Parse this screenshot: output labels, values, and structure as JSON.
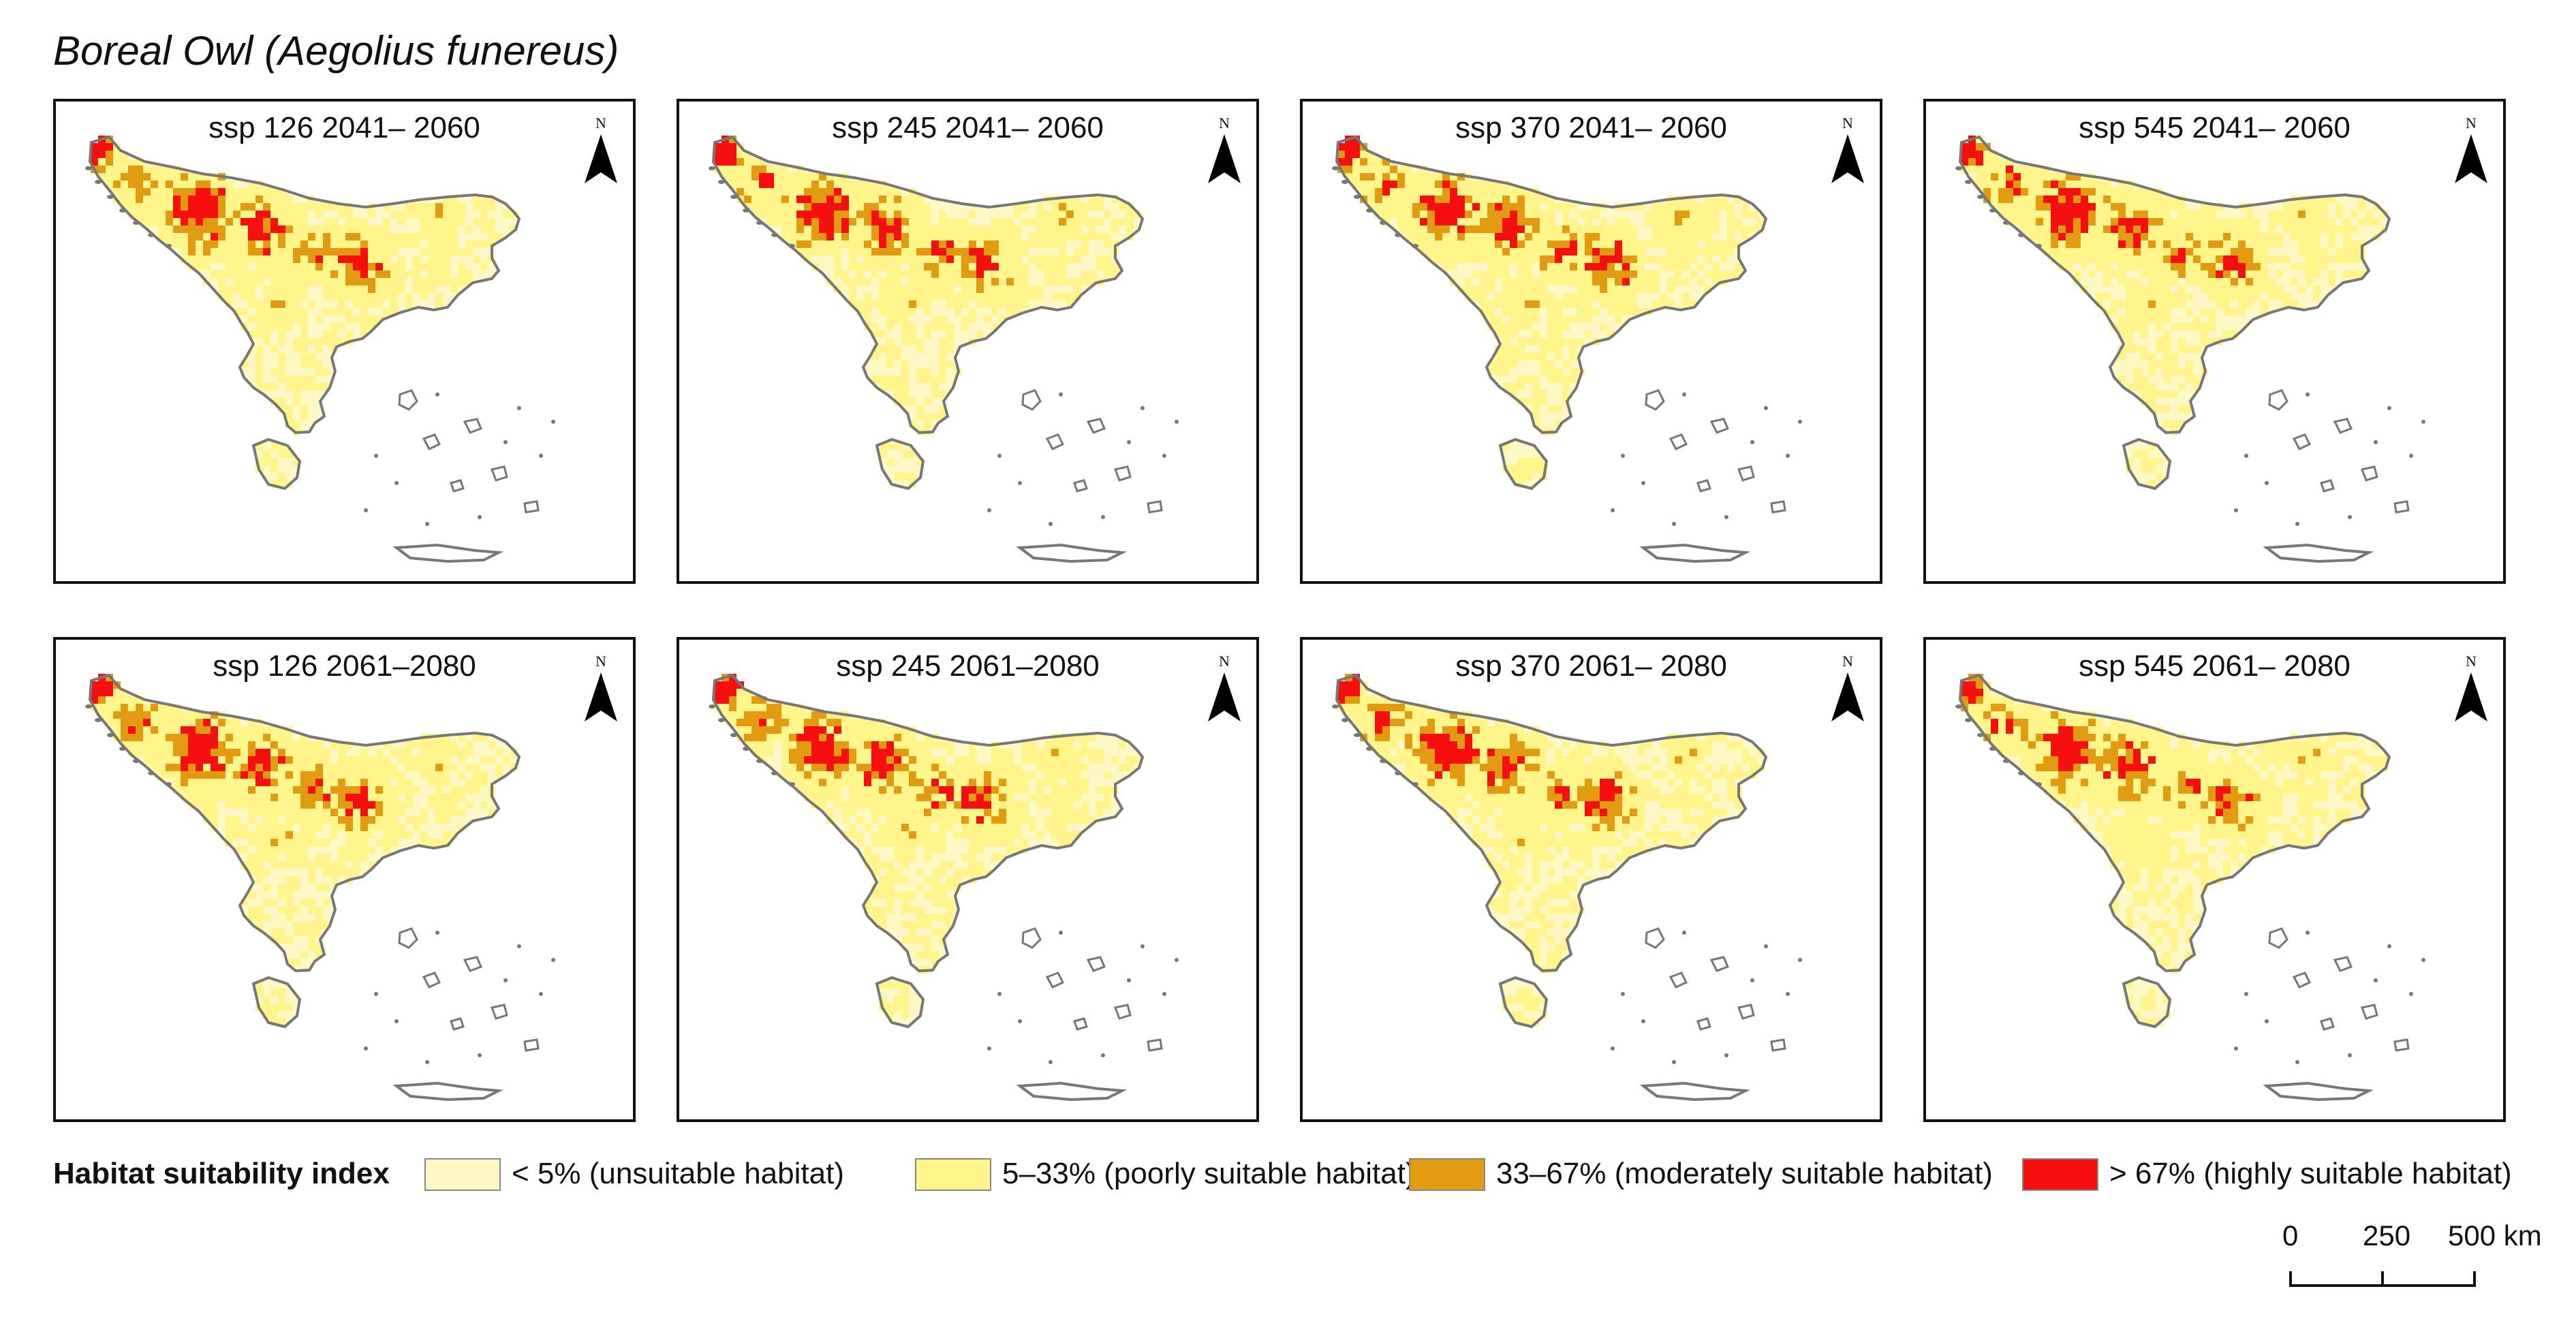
{
  "figure": {
    "title": "Boreal Owl (Aegolius funereus)"
  },
  "panels": [
    {
      "label": "ssp 126 2041– 2060",
      "scenario": "ssp 126",
      "period": "2041–2060"
    },
    {
      "label": "ssp 245 2041– 2060",
      "scenario": "ssp 245",
      "period": "2041–2060"
    },
    {
      "label": "ssp 370 2041– 2060",
      "scenario": "ssp 370",
      "period": "2041–2060"
    },
    {
      "label": "ssp 545 2041– 2060",
      "scenario": "ssp 545",
      "period": "2041–2060"
    },
    {
      "label": "ssp 126 2061–2080",
      "scenario": "ssp 126",
      "period": "2061–2080"
    },
    {
      "label": "ssp 245 2061–2080",
      "scenario": "ssp 245",
      "period": "2061–2080"
    },
    {
      "label": "ssp 370 2061– 2080",
      "scenario": "ssp 370",
      "period": "2061–2080"
    },
    {
      "label": "ssp 545 2061– 2080",
      "scenario": "ssp 545",
      "period": "2061–2080"
    }
  ],
  "north_arrow": {
    "letter": "N"
  },
  "legend": {
    "title": "Habitat suitability index",
    "classes": [
      {
        "label": "< 5% (unsuitable habitat)",
        "color": "#FEF8C6"
      },
      {
        "label": "5–33% (poorly suitable habitat)",
        "color": "#FFF58A"
      },
      {
        "label": "33–67% (moderately suitable habitat)",
        "color": "#E29A10"
      },
      {
        "label": "> 67% (highly suitable habitat)",
        "color": "#F50F0F"
      }
    ]
  },
  "scale_bar": {
    "ticks": [
      "0",
      "250",
      "500 km"
    ]
  },
  "colors": {
    "coast_outline": "#777777",
    "land_base": "#FEF8C6"
  }
}
